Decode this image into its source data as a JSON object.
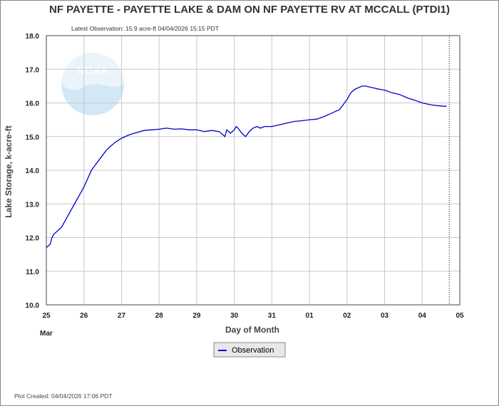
{
  "chart_data": {
    "type": "line",
    "title": "NF PAYETTE - PAYETTE LAKE & DAM ON NF PAYETTE RV AT MCCALL  (PTDI1)",
    "subtitle": "Latest Observation: 15.9 acre-ft 04/04/2026 15:15 PDT",
    "xlabel": "Day of Month",
    "ylabel": "Lake Storage, k-acre-ft",
    "month_label": "Mar",
    "x_ticks": [
      "25",
      "26",
      "27",
      "28",
      "29",
      "30",
      "31",
      "01",
      "02",
      "03",
      "04",
      "05"
    ],
    "y_ticks": [
      "10.0",
      "11.0",
      "12.0",
      "13.0",
      "14.0",
      "15.0",
      "16.0",
      "17.0",
      "18.0"
    ],
    "xlim": [
      0,
      11
    ],
    "ylim": [
      10.0,
      18.0
    ],
    "grid": true,
    "legend_position": "bottom-center",
    "footer": "Plot Created: 04/04/2026 17:06 PDT",
    "watermark": "NOAA",
    "colors": {
      "series": "#0000cc",
      "marker_line": "#000000"
    },
    "marker_x": 10.72,
    "series": [
      {
        "name": "Observation",
        "x": [
          0.0,
          0.1,
          0.15,
          0.2,
          0.3,
          0.4,
          0.5,
          0.6,
          0.7,
          0.8,
          0.9,
          1.0,
          1.1,
          1.2,
          1.3,
          1.4,
          1.5,
          1.6,
          1.7,
          1.8,
          1.9,
          2.0,
          2.2,
          2.4,
          2.6,
          2.8,
          3.0,
          3.2,
          3.4,
          3.6,
          3.8,
          4.0,
          4.2,
          4.4,
          4.6,
          4.75,
          4.8,
          4.9,
          5.0,
          5.05,
          5.1,
          5.2,
          5.3,
          5.4,
          5.5,
          5.6,
          5.7,
          5.8,
          5.9,
          6.0,
          6.2,
          6.4,
          6.6,
          6.8,
          7.0,
          7.2,
          7.4,
          7.6,
          7.8,
          7.9,
          8.0,
          8.1,
          8.2,
          8.3,
          8.4,
          8.5,
          8.6,
          8.7,
          8.8,
          8.9,
          9.0,
          9.2,
          9.4,
          9.6,
          9.8,
          10.0,
          10.2,
          10.4,
          10.6,
          10.65
        ],
        "values": [
          11.7,
          11.8,
          12.0,
          12.1,
          12.2,
          12.3,
          12.5,
          12.7,
          12.9,
          13.1,
          13.3,
          13.5,
          13.75,
          14.0,
          14.15,
          14.3,
          14.45,
          14.6,
          14.7,
          14.8,
          14.88,
          14.95,
          15.05,
          15.12,
          15.18,
          15.2,
          15.22,
          15.25,
          15.22,
          15.23,
          15.2,
          15.2,
          15.15,
          15.18,
          15.15,
          15.0,
          15.2,
          15.1,
          15.2,
          15.3,
          15.25,
          15.1,
          15.0,
          15.15,
          15.25,
          15.3,
          15.25,
          15.3,
          15.3,
          15.3,
          15.35,
          15.4,
          15.45,
          15.47,
          15.5,
          15.52,
          15.6,
          15.7,
          15.8,
          15.95,
          16.1,
          16.3,
          16.4,
          16.45,
          16.5,
          16.5,
          16.47,
          16.45,
          16.42,
          16.4,
          16.38,
          16.3,
          16.25,
          16.15,
          16.08,
          16.0,
          15.95,
          15.92,
          15.9,
          15.9
        ]
      }
    ]
  }
}
